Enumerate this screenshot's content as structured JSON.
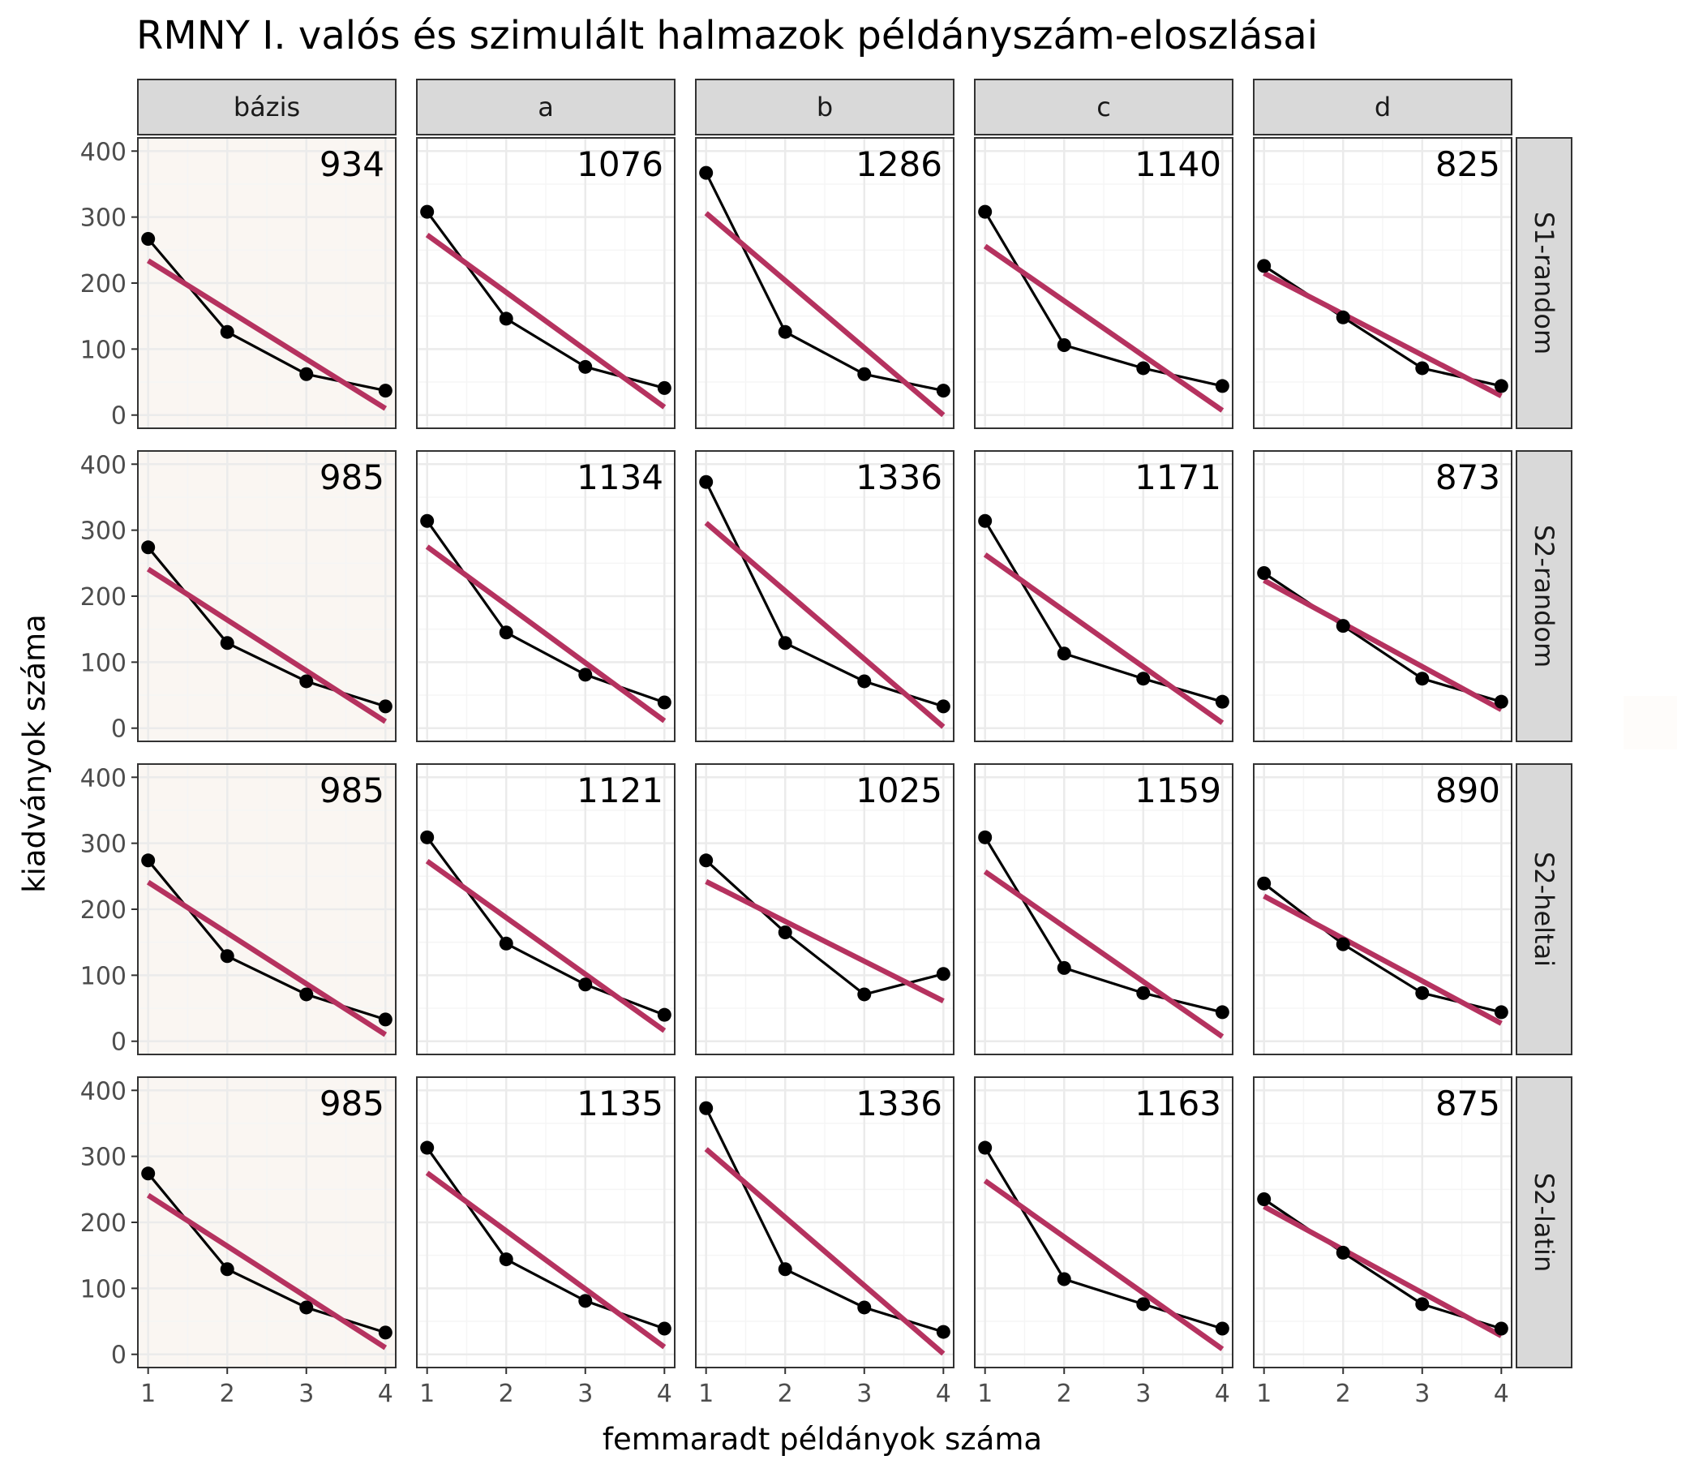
{
  "chart_data": {
    "type": "line",
    "title": "RMNY I. valós és szimulált halmazok példányszám-eloszlásai",
    "xlabel": "femmaradt példányok száma",
    "ylabel": "kiadványok száma",
    "x": [
      1,
      2,
      3,
      4
    ],
    "x_ticks": [
      "1",
      "2",
      "3",
      "4"
    ],
    "y_ticks": [
      "0",
      "100",
      "200",
      "300",
      "400"
    ],
    "xlim": [
      0.87,
      4.13
    ],
    "ylim": [
      -20,
      420
    ],
    "grid": true,
    "legend": "none",
    "colors": {
      "points_line": "#000000",
      "fit_line": "#b5325f",
      "strip_fill": "#d9d9d9",
      "highlight_panel_bg": "#faf6f2",
      "grid_major": "#ebebeb",
      "grid_minor": "#f5f5f5"
    },
    "columns": [
      "bázis",
      "a",
      "b",
      "c",
      "d"
    ],
    "rows": [
      "S1-random",
      "S2-random",
      "S2-heltai",
      "S2-latin"
    ],
    "highlighted_column": "bázis",
    "panels": [
      [
        {
          "total": "934",
          "values": [
            267,
            126,
            62,
            37
          ],
          "fit": [
            234,
            159,
            85,
            10
          ]
        },
        {
          "total": "1076",
          "values": [
            308,
            146,
            73,
            41
          ],
          "fit": [
            273,
            186,
            99,
            12
          ]
        },
        {
          "total": "1286",
          "values": [
            367,
            126,
            62,
            37
          ],
          "fit": [
            306,
            204,
            102,
            0
          ]
        },
        {
          "total": "1140",
          "values": [
            308,
            106,
            71,
            44
          ],
          "fit": [
            256,
            173,
            90,
            7
          ]
        },
        {
          "total": "825",
          "values": [
            226,
            148,
            71,
            44
          ],
          "fit": [
            215,
            153,
            91,
            29
          ]
        }
      ],
      [
        {
          "total": "985",
          "values": [
            274,
            129,
            71,
            33
          ],
          "fit": [
            241,
            164,
            87,
            10
          ]
        },
        {
          "total": "1134",
          "values": [
            314,
            145,
            81,
            39
          ],
          "fit": [
            275,
            187,
            99,
            11
          ]
        },
        {
          "total": "1336",
          "values": [
            373,
            129,
            71,
            33
          ],
          "fit": [
            311,
            208,
            105,
            2
          ]
        },
        {
          "total": "1171",
          "values": [
            314,
            113,
            75,
            40
          ],
          "fit": [
            263,
            178,
            93,
            8
          ]
        },
        {
          "total": "873",
          "values": [
            235,
            155,
            75,
            40
          ],
          "fit": [
            224,
            159,
            94,
            28
          ]
        }
      ],
      [
        {
          "total": "985",
          "values": [
            274,
            129,
            71,
            33
          ],
          "fit": [
            241,
            164,
            87,
            10
          ]
        },
        {
          "total": "1121",
          "values": [
            309,
            148,
            86,
            40
          ],
          "fit": [
            273,
            187,
            101,
            16
          ]
        },
        {
          "total": "1025",
          "values": [
            274,
            165,
            71,
            102
          ],
          "fit": [
            242,
            182,
            121,
            61
          ]
        },
        {
          "total": "1159",
          "values": [
            309,
            111,
            73,
            44
          ],
          "fit": [
            257,
            173,
            90,
            7
          ]
        },
        {
          "total": "890",
          "values": [
            239,
            147,
            73,
            44
          ],
          "fit": [
            220,
            156,
            92,
            27
          ]
        }
      ],
      [
        {
          "total": "985",
          "values": [
            274,
            129,
            71,
            33
          ],
          "fit": [
            241,
            164,
            87,
            10
          ]
        },
        {
          "total": "1135",
          "values": [
            313,
            144,
            81,
            39
          ],
          "fit": [
            275,
            187,
            99,
            11
          ]
        },
        {
          "total": "1336",
          "values": [
            373,
            129,
            71,
            34
          ],
          "fit": [
            311,
            208,
            104,
            1
          ]
        },
        {
          "total": "1163",
          "values": [
            313,
            114,
            76,
            39
          ],
          "fit": [
            263,
            178,
            93,
            8
          ]
        },
        {
          "total": "875",
          "values": [
            235,
            154,
            76,
            39
          ],
          "fit": [
            224,
            159,
            94,
            28
          ]
        }
      ]
    ]
  }
}
